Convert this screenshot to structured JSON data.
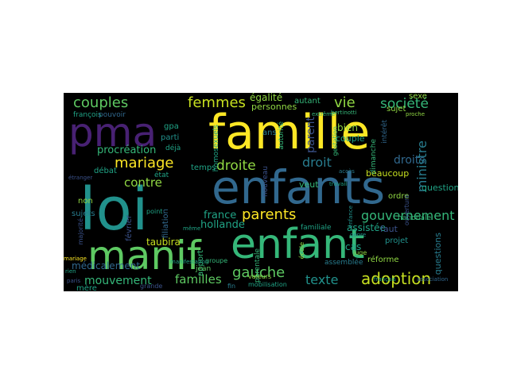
{
  "word_cloud": {
    "background": "#000000",
    "palette": [
      "#fde725",
      "#c7e020",
      "#90d743",
      "#5ec962",
      "#35b779",
      "#20a486",
      "#21918c",
      "#287c8e",
      "#31688e",
      "#3b528b",
      "#443983",
      "#482173",
      "#440154"
    ],
    "words": [
      {
        "text": "famille",
        "color": "#fde725"
      },
      {
        "text": "loi",
        "color": "#21918c"
      },
      {
        "text": "enfants",
        "color": "#31688e"
      },
      {
        "text": "manif",
        "color": "#5ec962"
      },
      {
        "text": "enfant",
        "color": "#35b779"
      },
      {
        "text": "pma",
        "color": "#482173"
      },
      {
        "text": "couples",
        "color": "#5ec962"
      },
      {
        "text": "femmes",
        "color": "#c7e020"
      },
      {
        "text": "mariage",
        "color": "#fde725"
      },
      {
        "text": "droite",
        "color": "#90d743"
      },
      {
        "text": "droit",
        "color": "#287c8e"
      },
      {
        "text": "droits",
        "color": "#31688e"
      },
      {
        "text": "parents",
        "color": "#fde725"
      },
      {
        "text": "gouvernement",
        "color": "#35b779"
      },
      {
        "text": "adoption",
        "color": "#c7e020"
      },
      {
        "text": "gauche",
        "color": "#5ec962"
      },
      {
        "text": "texte",
        "color": "#21918c"
      },
      {
        "text": "mouvement",
        "color": "#35b779"
      },
      {
        "text": "familles",
        "color": "#5ec962"
      },
      {
        "text": "politique",
        "color": "#3b528b"
      },
      {
        "text": "société",
        "color": "#35b779"
      },
      {
        "text": "ministre",
        "color": "#287c8e"
      },
      {
        "text": "vie",
        "color": "#90d743"
      },
      {
        "text": "parent",
        "color": "#3b528b"
      },
      {
        "text": "contre",
        "color": "#90d743"
      },
      {
        "text": "procréation",
        "color": "#35b779"
      },
      {
        "text": "france",
        "color": "#20a486"
      },
      {
        "text": "hollande",
        "color": "#20a486"
      },
      {
        "text": "taubira",
        "color": "#c7e020"
      },
      {
        "text": "médicalement",
        "color": "#31688e"
      },
      {
        "text": "assistée",
        "color": "#20a486"
      },
      {
        "text": "égalité",
        "color": "#90d743"
      },
      {
        "text": "personnes",
        "color": "#90d743"
      },
      {
        "text": "question",
        "color": "#20a486"
      },
      {
        "text": "questions",
        "color": "#287c8e"
      },
      {
        "text": "beaucoup",
        "color": "#c7e020"
      },
      {
        "text": "faut",
        "color": "#3b528b"
      },
      {
        "text": "bien",
        "color": "#90d743"
      },
      {
        "text": "couple",
        "color": "#20a486"
      },
      {
        "text": "cas",
        "color": "#20a486"
      },
      {
        "text": "réforme",
        "color": "#90d743"
      },
      {
        "text": "projet",
        "color": "#21918c"
      },
      {
        "text": "sujet",
        "color": "#90d743"
      },
      {
        "text": "sujets",
        "color": "#287c8e"
      },
      {
        "text": "ordre",
        "color": "#90d743"
      },
      {
        "text": "veut",
        "color": "#35b779"
      },
      {
        "text": "débat",
        "color": "#20a486"
      },
      {
        "text": "février",
        "color": "#3b528b"
      },
      {
        "text": "filiation",
        "color": "#31688e"
      },
      {
        "text": "apport",
        "color": "#35b779"
      },
      {
        "text": "temps",
        "color": "#20a486"
      },
      {
        "text": "non",
        "color": "#90d743"
      },
      {
        "text": "mère",
        "color": "#20a486"
      },
      {
        "text": "françois",
        "color": "#20a486"
      },
      {
        "text": "pouvoir",
        "color": "#31688e"
      },
      {
        "text": "gpa",
        "color": "#20a486"
      },
      {
        "text": "parti",
        "color": "#21918c"
      },
      {
        "text": "déjà",
        "color": "#20a486"
      },
      {
        "text": "état",
        "color": "#20a486"
      },
      {
        "text": "ans",
        "color": "#287c8e"
      },
      {
        "text": "autant",
        "color": "#35b779"
      },
      {
        "text": "sexe",
        "color": "#90d743"
      },
      {
        "text": "dimanche",
        "color": "#35b779"
      },
      {
        "text": "homosexuels",
        "color": "#20a486"
      },
      {
        "text": "nationale",
        "color": "#35b779"
      },
      {
        "text": "assemblée",
        "color": "#287c8e"
      },
      {
        "text": "familiale",
        "color": "#20a486"
      },
      {
        "text": "parentale",
        "color": "#35b779"
      },
      {
        "text": "jean",
        "color": "#5ec962"
      },
      {
        "text": "fin",
        "color": "#287c8e"
      },
      {
        "text": "mobilisation",
        "color": "#20a486"
      },
      {
        "text": "grande",
        "color": "#3b528b"
      },
      {
        "text": "valeurs",
        "color": "#90d743"
      },
      {
        "text": "nouveau",
        "color": "#3b528b"
      },
      {
        "text": "autorité",
        "color": "#35b779"
      },
      {
        "text": "juge",
        "color": "#90d743"
      },
      {
        "text": "point",
        "color": "#20a486"
      },
      {
        "text": "groupe",
        "color": "#35b779"
      },
      {
        "text": "manifestation",
        "color": "#20a486"
      },
      {
        "text": "mariage",
        "color": "#fde725"
      },
      {
        "text": "majorité",
        "color": "#3b528b"
      },
      {
        "text": "intérêt",
        "color": "#31688e"
      },
      {
        "text": "enfance",
        "color": "#21918c"
      },
      {
        "text": "rien",
        "color": "#20a486"
      },
      {
        "text": "étranger",
        "color": "#3b528b"
      },
      {
        "text": "accès",
        "color": "#287c8e"
      },
      {
        "text": "gestation",
        "color": "#35b779"
      },
      {
        "text": "bertinotti",
        "color": "#35b779"
      },
      {
        "text": "travail",
        "color": "#20a486"
      },
      {
        "text": "français",
        "color": "#20a486"
      },
      {
        "text": "école",
        "color": "#90d743"
      },
      {
        "text": "association",
        "color": "#31688e"
      },
      {
        "text": "paris",
        "color": "#3b528b"
      },
      {
        "text": "ouverture",
        "color": "#3b528b"
      },
      {
        "text": "même",
        "color": "#20a486"
      },
      {
        "text": "genre",
        "color": "#21918c"
      },
      {
        "text": "extrême",
        "color": "#35b779"
      },
      {
        "text": "proche",
        "color": "#90d743"
      }
    ]
  }
}
